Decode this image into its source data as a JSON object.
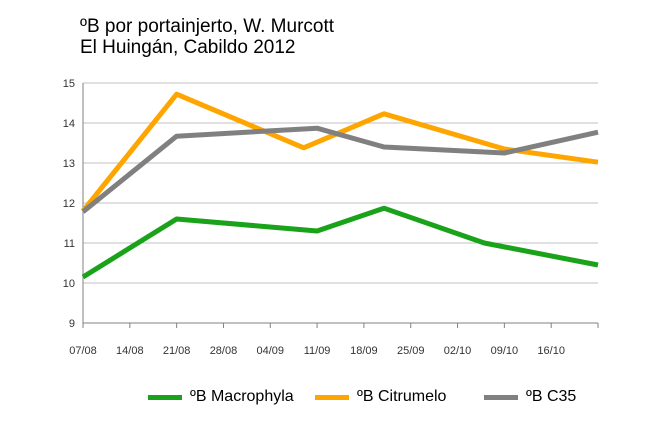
{
  "chart_data": {
    "type": "line",
    "title": "ºB por portainjerto, W. Murcott",
    "subtitle": "El Huingán, Cabildo 2012",
    "xlabel": "",
    "ylabel": "",
    "x_ticks": [
      "07/08",
      "14/08",
      "21/08",
      "28/08",
      "04/09",
      "11/09",
      "18/09",
      "25/09",
      "02/10",
      "09/10",
      "16/10"
    ],
    "y_ticks": [
      9,
      10,
      11,
      12,
      13,
      14,
      15
    ],
    "ylim": [
      9,
      15
    ],
    "grid": "horizontal",
    "legend_position": "bottom",
    "series": [
      {
        "name": "ºB Macrophyla",
        "color": "#1aa31a",
        "points": [
          {
            "x": "07/08",
            "y": 10.15
          },
          {
            "x": "21/08",
            "y": 11.6
          },
          {
            "x": "11/09",
            "y": 11.3
          },
          {
            "x": "21/09",
            "y": 11.87
          },
          {
            "x": "06/10",
            "y": 11.0
          },
          {
            "x": "23/10",
            "y": 10.45
          }
        ]
      },
      {
        "name": "ºB Citrumelo",
        "color": "#ffa500",
        "points": [
          {
            "x": "07/08",
            "y": 11.8
          },
          {
            "x": "21/08",
            "y": 14.72
          },
          {
            "x": "09/09",
            "y": 13.38
          },
          {
            "x": "21/09",
            "y": 14.23
          },
          {
            "x": "09/10",
            "y": 13.35
          },
          {
            "x": "23/10",
            "y": 13.02
          }
        ]
      },
      {
        "name": "ºB C35",
        "color": "#808080",
        "points": [
          {
            "x": "07/08",
            "y": 11.78
          },
          {
            "x": "21/08",
            "y": 13.67
          },
          {
            "x": "11/09",
            "y": 13.87
          },
          {
            "x": "21/09",
            "y": 13.4
          },
          {
            "x": "09/10",
            "y": 13.25
          },
          {
            "x": "23/10",
            "y": 13.77
          }
        ]
      }
    ]
  },
  "colors": {
    "axis": "#808080",
    "grid": "#c0c0c0"
  }
}
